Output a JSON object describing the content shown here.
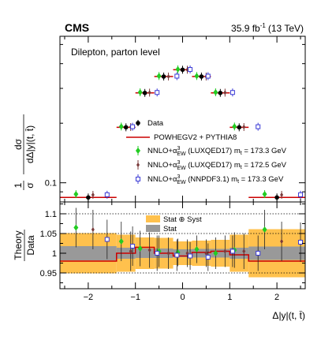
{
  "header": {
    "experiment": "CMS",
    "lumi": "35.9 fb",
    "lumi_sup": "-1",
    "energy": "(13 TeV)"
  },
  "chart_data": [
    {
      "type": "line",
      "panel": "top",
      "description": "Dilepton, parton level",
      "ylabel": {
        "frac_num": "1",
        "frac_den": "σ",
        "diff_num": "dσ",
        "diff_den": "dΔ|y|(t, t̄)"
      },
      "yscale": "log",
      "ylim": [
        0.08,
        0.55
      ],
      "xlim": [
        -2.6,
        2.6
      ],
      "y_tick_labels": [
        {
          "value": 0.1,
          "label": "0.1"
        }
      ],
      "bin_edges": [
        -2.6,
        -1.4,
        -1.0,
        -0.6,
        -0.2,
        0.2,
        0.6,
        1.0,
        1.4,
        2.6
      ],
      "series": [
        {
          "name": "Data",
          "color": "#000000",
          "marker": "filled-circle",
          "x": [
            -2.0,
            -1.2,
            -0.8,
            -0.4,
            0.0,
            0.4,
            0.8,
            1.2,
            2.0
          ],
          "values": [
            0.0843,
            0.1907,
            0.2846,
            0.3443,
            0.3727,
            0.3443,
            0.2846,
            0.1907,
            0.0843
          ]
        },
        {
          "name": "POWHEGV2 + PYTHIA8",
          "color": "#cc0000",
          "style": "histogram",
          "values": [
            0.0843,
            0.1907,
            0.2846,
            0.3443,
            0.3727,
            0.3443,
            0.2846,
            0.1907,
            0.0843
          ]
        },
        {
          "name": "NNLO+α³ EW (LUXQED17) m t = 173.3 GeV",
          "color": "#22cc22",
          "marker": "diamond",
          "x": [
            -2.26,
            -1.3,
            -0.9,
            -0.5,
            -0.1,
            0.3,
            0.7,
            1.1,
            1.74
          ],
          "values": [
            0.0876,
            0.1925,
            0.2866,
            0.3464,
            0.3743,
            0.3464,
            0.2866,
            0.1925,
            0.0876
          ]
        },
        {
          "name": "NNLO+α³ EW (LUXQED17) m t = 172.5 GeV",
          "color": "#7a3a3a",
          "marker": "small-diamond",
          "x": [
            -1.9,
            -1.1,
            -0.7,
            -0.3,
            0.1,
            0.5,
            0.9,
            1.3,
            2.1
          ],
          "values": [
            0.0869,
            0.1913,
            0.2855,
            0.3443,
            0.3727,
            0.3443,
            0.2855,
            0.1913,
            0.0869
          ]
        },
        {
          "name": "NNLO+α³ EW (NNPDF3.1) m t = 173.3 GeV",
          "color": "#3b3bd6",
          "marker": "open-square",
          "x": [
            -1.6,
            -1.06,
            -0.54,
            -0.12,
            0.16,
            0.54,
            1.06,
            1.6,
            2.5
          ],
          "values": [
            0.087,
            0.192,
            0.286,
            0.3459,
            0.3739,
            0.3459,
            0.286,
            0.192,
            0.087
          ]
        }
      ],
      "legend": {
        "placement": "center-right",
        "entries": [
          "Data",
          "POWHEGV2 + PYTHIA8",
          "NNLO+α³ EW (LUXQED17) m t = 173.3 GeV",
          "NNLO+α³ EW (LUXQED17) m t = 172.5 GeV",
          "NNLO+α³ EW (NNPDF3.1) m t = 173.3 GeV"
        ]
      }
    },
    {
      "type": "line",
      "panel": "ratio",
      "ylabel": {
        "num": "Theory",
        "den": "Data"
      },
      "xlabel": "Δ|y|(t, t̄)",
      "ylim": [
        0.91,
        1.13
      ],
      "xlim": [
        -2.6,
        2.6
      ],
      "x_ticks": [
        -2,
        -1,
        0,
        1,
        2
      ],
      "x_tick_labels": [
        "−2",
        "−1",
        "0",
        "1",
        "2"
      ],
      "y_ticks": [
        0.95,
        1.0,
        1.05,
        1.1
      ],
      "y_tick_labels": [
        "0.95",
        "1",
        "1.05",
        "1.1"
      ],
      "dotted_lines": [
        0.95,
        1.05,
        1.1
      ],
      "bin_edges": [
        -2.6,
        -1.4,
        -1.0,
        -0.6,
        -0.2,
        0.2,
        0.6,
        1.0,
        1.4,
        2.6
      ],
      "band_stat_syst": {
        "name": "Stat ⊕ Syst",
        "color": "#ffc14d",
        "half_widths": [
          0.051,
          0.047,
          0.04,
          0.039,
          0.03,
          0.032,
          0.034,
          0.047,
          0.061
        ]
      },
      "band_stat": {
        "name": "Stat",
        "color": "#999999",
        "half_widths": [
          0.018,
          0.014,
          0.012,
          0.012,
          0.01,
          0.011,
          0.011,
          0.014,
          0.017
        ]
      },
      "series": [
        {
          "name": "POWHEGV2 + PYTHIA8",
          "color": "#cc0000",
          "style": "histogram",
          "values": [
            0.98,
            1.0,
            1.015,
            1.0,
            0.993,
            1.002,
            1.005,
            0.996,
            0.98
          ]
        },
        {
          "name": "NNLO+α³ EW (LUXQED17) m t = 173.3 GeV",
          "color": "#22cc22",
          "marker": "diamond",
          "x": [
            -2.26,
            -1.3,
            -0.9,
            -0.5,
            -0.1,
            0.3,
            0.7,
            1.1,
            1.74
          ],
          "values": [
            1.065,
            1.03,
            1.012,
            1.005,
            1.002,
            1.01,
            1.0,
            1.008,
            1.06
          ],
          "errors": [
            0.05,
            0.05,
            0.045,
            0.04,
            0.035,
            0.035,
            0.04,
            0.045,
            0.05
          ]
        },
        {
          "name": "NNLO+α³ EW (LUXQED17) m t = 172.5 GeV",
          "color": "#7a3a3a",
          "marker": "small-diamond",
          "x": [
            -1.9,
            -1.1,
            -0.7,
            -0.3,
            0.1,
            0.5,
            0.9,
            1.3,
            2.1
          ],
          "values": [
            1.06,
            1.005,
            1.008,
            1.0,
            1.0,
            1.0,
            1.005,
            1.005,
            1.03
          ],
          "errors": [
            0.05,
            0.05,
            0.045,
            0.04,
            0.035,
            0.035,
            0.04,
            0.045,
            0.05
          ]
        },
        {
          "name": "NNLO+α³ EW (NNPDF3.1) m t = 173.3 GeV",
          "color": "#3b3bd6",
          "marker": "open-square",
          "x": [
            -1.6,
            -1.06,
            -0.54,
            -0.12,
            0.16,
            0.54,
            1.06,
            1.6,
            2.5
          ],
          "values": [
            1.035,
            1.018,
            1.0,
            0.995,
            0.993,
            0.99,
            1.005,
            1.0,
            1.028
          ],
          "errors": [
            0.05,
            0.05,
            0.045,
            0.04,
            0.035,
            0.035,
            0.04,
            0.045,
            0.05
          ]
        }
      ],
      "legend": {
        "placement": "top-center",
        "entries": [
          "Stat ⊕ Syst",
          "Stat"
        ]
      }
    }
  ]
}
